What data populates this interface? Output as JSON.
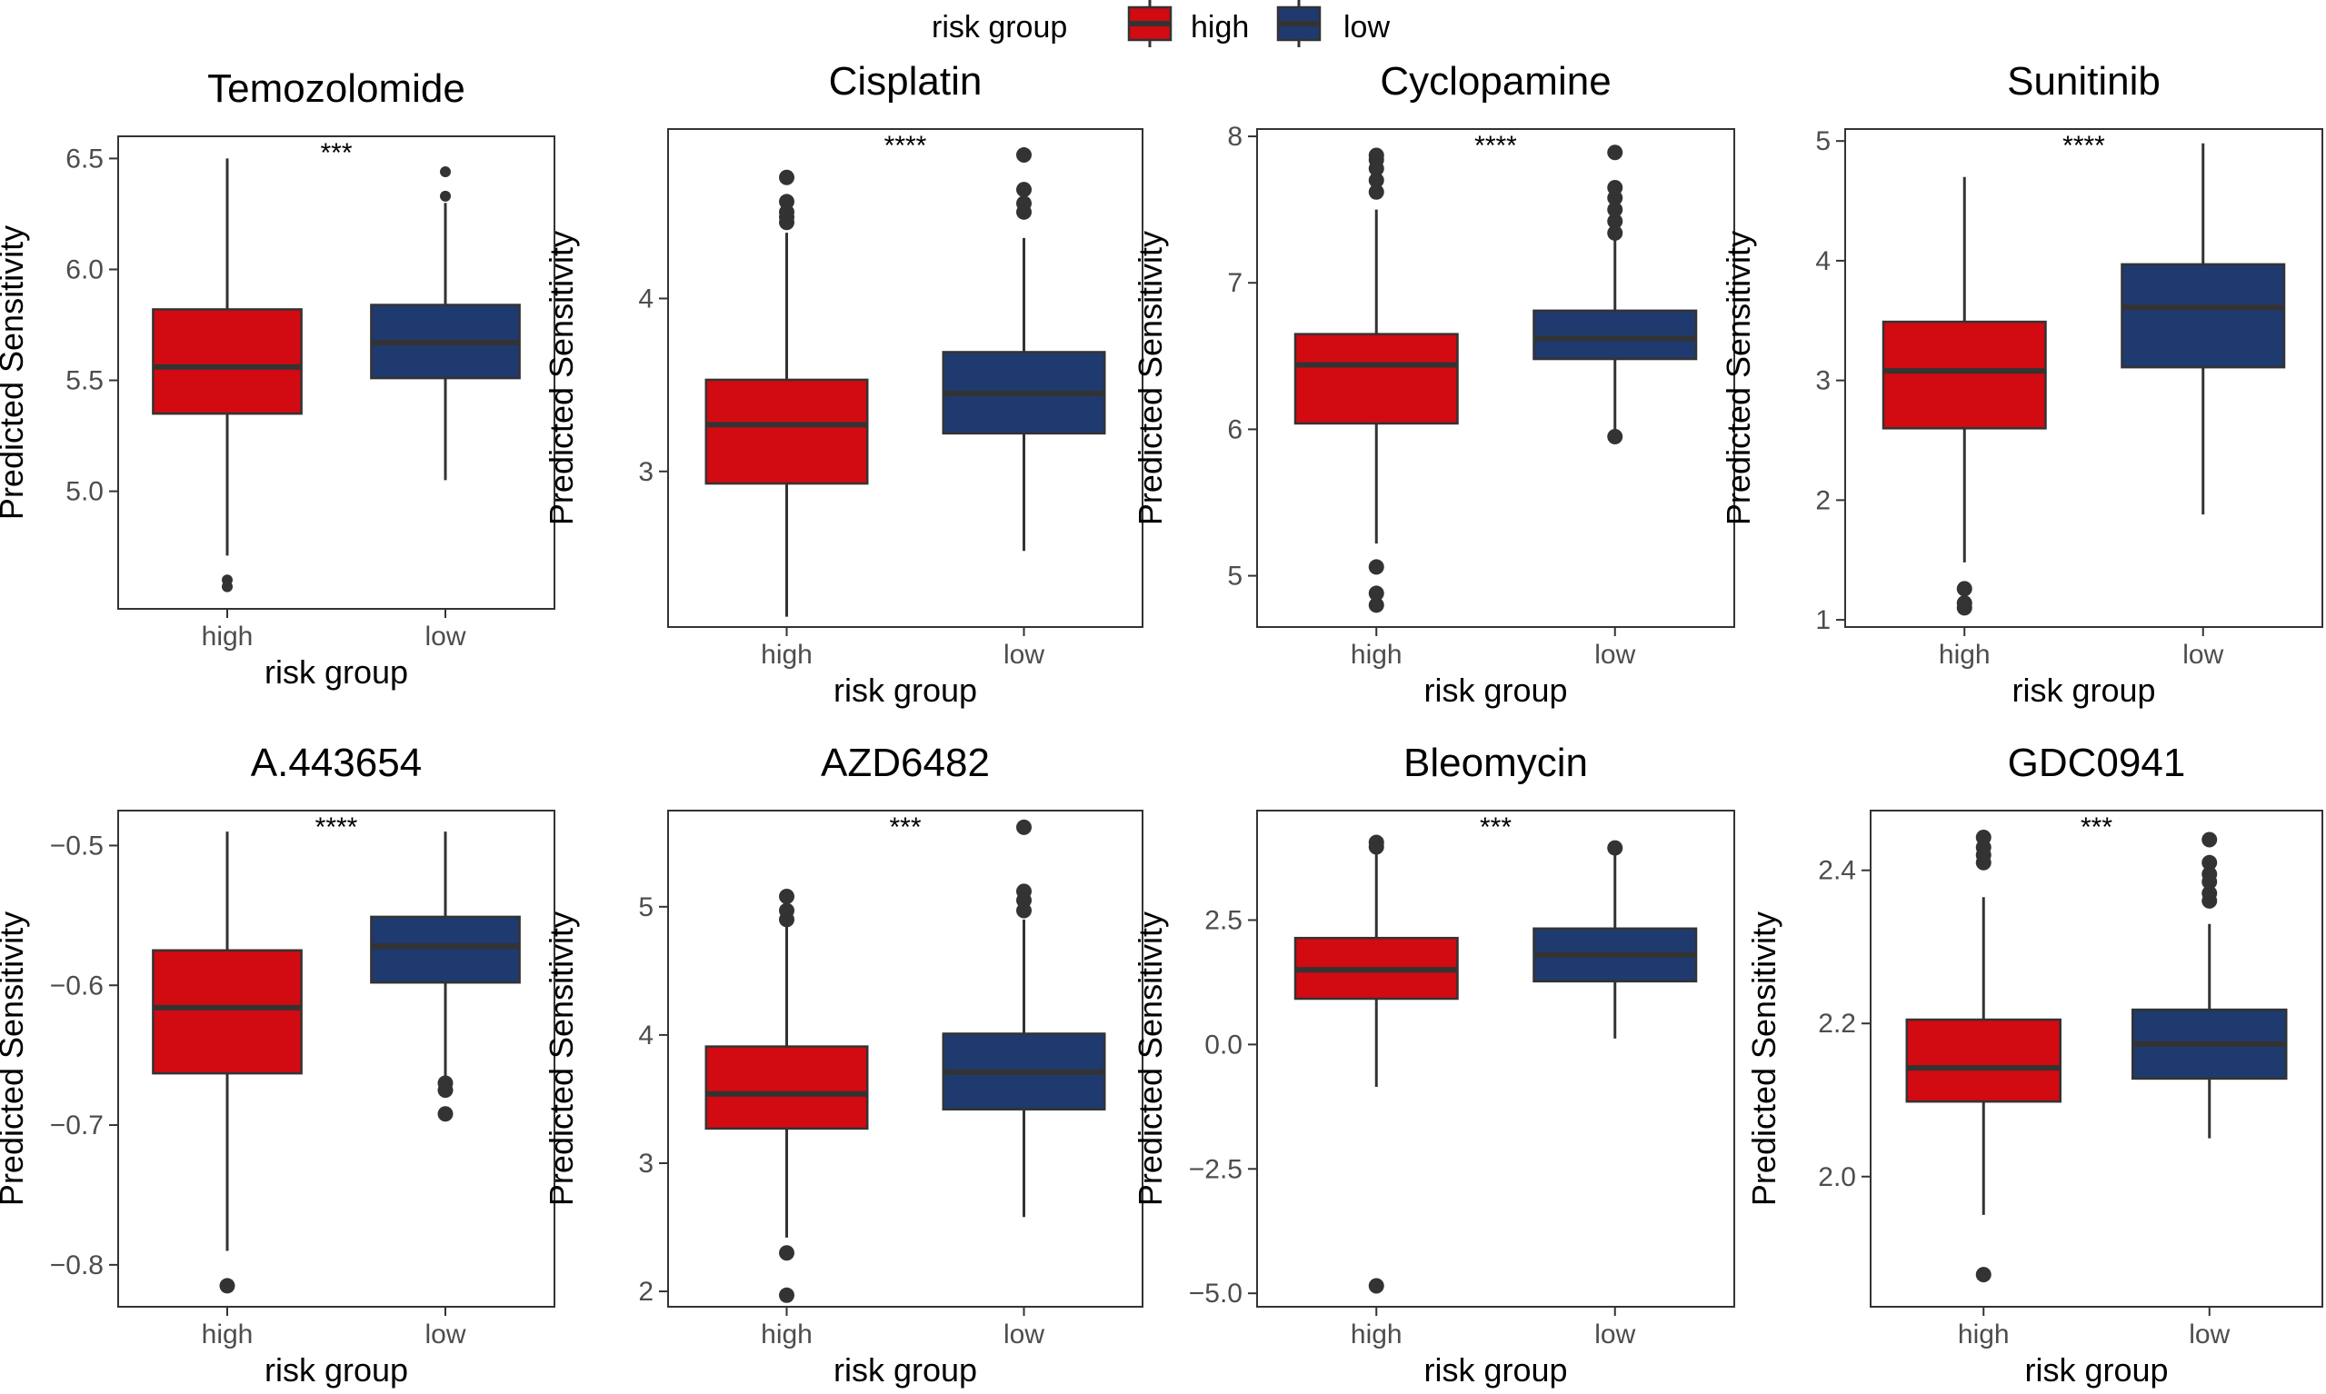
{
  "legend": {
    "title": "risk group",
    "entries": [
      {
        "label": "high",
        "color": "#D20A11"
      },
      {
        "label": "low",
        "color": "#1F3A6E"
      }
    ]
  },
  "chart_data": [
    {
      "type": "box",
      "title": "Temozolomide",
      "xlabel": "risk group",
      "ylabel": "Predicted Sensitivity",
      "categories": [
        "high",
        "low"
      ],
      "ylim": [
        4.47,
        6.6
      ],
      "yticks": [
        5.0,
        5.5,
        6.0,
        6.5
      ],
      "ytick_labels": [
        "5.0",
        "5.5",
        "6.0",
        "6.5"
      ],
      "significance": "***",
      "boxes": [
        {
          "group": "high",
          "whisker_low": 4.71,
          "q1": 5.35,
          "median": 5.56,
          "q3": 5.82,
          "whisker_high": 6.5,
          "outliers": [
            4.57,
            4.6
          ]
        },
        {
          "group": "low",
          "whisker_low": 5.05,
          "q1": 5.51,
          "median": 5.67,
          "q3": 5.84,
          "whisker_high": 6.3,
          "outliers": [
            6.33,
            6.44
          ]
        }
      ]
    },
    {
      "type": "box",
      "title": "Cisplatin",
      "xlabel": "risk group",
      "ylabel": "Predicted Sensitivity",
      "categories": [
        "high",
        "low"
      ],
      "ylim": [
        2.1,
        4.98
      ],
      "yticks": [
        3,
        4
      ],
      "ytick_labels": [
        "3",
        "4"
      ],
      "significance": "****",
      "boxes": [
        {
          "group": "high",
          "whisker_low": 2.16,
          "q1": 2.93,
          "median": 3.27,
          "q3": 3.53,
          "whisker_high": 4.38,
          "outliers": [
            4.44,
            4.47,
            4.5,
            4.56,
            4.7
          ]
        },
        {
          "group": "low",
          "whisker_low": 2.54,
          "q1": 3.22,
          "median": 3.45,
          "q3": 3.69,
          "whisker_high": 4.35,
          "outliers": [
            4.5,
            4.55,
            4.63,
            4.83
          ]
        }
      ]
    },
    {
      "type": "box",
      "title": "Cyclopamine",
      "xlabel": "risk group",
      "ylabel": "Predicted Sensitivity",
      "categories": [
        "high",
        "low"
      ],
      "ylim": [
        4.65,
        8.05
      ],
      "yticks": [
        5,
        6,
        7,
        8
      ],
      "ytick_labels": [
        "5",
        "6",
        "7",
        "8"
      ],
      "significance": "****",
      "boxes": [
        {
          "group": "high",
          "whisker_low": 5.22,
          "q1": 6.04,
          "median": 6.44,
          "q3": 6.65,
          "whisker_high": 7.5,
          "outliers": [
            4.8,
            4.88,
            5.06,
            7.62,
            7.7,
            7.78,
            7.84,
            7.87
          ]
        },
        {
          "group": "low",
          "whisker_low": 5.94,
          "q1": 6.48,
          "median": 6.62,
          "q3": 6.81,
          "whisker_high": 7.3,
          "outliers": [
            5.95,
            7.34,
            7.42,
            7.5,
            7.58,
            7.65,
            7.89
          ]
        }
      ]
    },
    {
      "type": "box",
      "title": "Sunitinib",
      "xlabel": "risk group",
      "ylabel": "Predicted Sensitivity",
      "categories": [
        "high",
        "low"
      ],
      "ylim": [
        0.94,
        5.1
      ],
      "yticks": [
        1,
        2,
        3,
        4,
        5
      ],
      "ytick_labels": [
        "1",
        "2",
        "3",
        "4",
        "5"
      ],
      "significance": "****",
      "boxes": [
        {
          "group": "high",
          "whisker_low": 1.48,
          "q1": 2.6,
          "median": 3.08,
          "q3": 3.49,
          "whisker_high": 4.7,
          "outliers": [
            1.1,
            1.14,
            1.26
          ]
        },
        {
          "group": "low",
          "whisker_low": 1.88,
          "q1": 3.11,
          "median": 3.61,
          "q3": 3.97,
          "whisker_high": 4.98,
          "outliers": []
        }
      ]
    },
    {
      "type": "box",
      "title": "A.443654",
      "xlabel": "risk group",
      "ylabel": "Predicted Sensitivity",
      "categories": [
        "high",
        "low"
      ],
      "ylim": [
        -0.83,
        -0.475
      ],
      "yticks": [
        -0.8,
        -0.7,
        -0.6,
        -0.5
      ],
      "ytick_labels": [
        "−0.8",
        "−0.7",
        "−0.6",
        "−0.5"
      ],
      "significance": "****",
      "boxes": [
        {
          "group": "high",
          "whisker_low": -0.79,
          "q1": -0.663,
          "median": -0.616,
          "q3": -0.575,
          "whisker_high": -0.49,
          "outliers": [
            -0.815
          ]
        },
        {
          "group": "low",
          "whisker_low": -0.665,
          "q1": -0.598,
          "median": -0.572,
          "q3": -0.551,
          "whisker_high": -0.49,
          "outliers": [
            -0.67,
            -0.675,
            -0.692
          ]
        }
      ]
    },
    {
      "type": "box",
      "title": "AZD6482",
      "xlabel": "risk group",
      "ylabel": "Predicted Sensitivity",
      "categories": [
        "high",
        "low"
      ],
      "ylim": [
        1.88,
        5.75
      ],
      "yticks": [
        2,
        3,
        4,
        5
      ],
      "ytick_labels": [
        "2",
        "3",
        "4",
        "5"
      ],
      "significance": "***",
      "boxes": [
        {
          "group": "high",
          "whisker_low": 2.42,
          "q1": 3.27,
          "median": 3.54,
          "q3": 3.91,
          "whisker_high": 4.88,
          "outliers": [
            1.97,
            2.3,
            4.9,
            4.97,
            5.08
          ]
        },
        {
          "group": "low",
          "whisker_low": 2.58,
          "q1": 3.42,
          "median": 3.71,
          "q3": 4.01,
          "whisker_high": 4.9,
          "outliers": [
            4.97,
            5.05,
            5.12,
            5.62
          ]
        }
      ]
    },
    {
      "type": "box",
      "title": "Bleomycin",
      "xlabel": "risk group",
      "ylabel": "Predicted Sensitivity",
      "categories": [
        "high",
        "low"
      ],
      "ylim": [
        -5.27,
        4.7
      ],
      "yticks": [
        -5.0,
        -2.5,
        0.0,
        2.5
      ],
      "ytick_labels": [
        "−5.0",
        "−2.5",
        "0.0",
        "2.5"
      ],
      "significance": "***",
      "boxes": [
        {
          "group": "high",
          "whisker_low": -0.85,
          "q1": 0.92,
          "median": 1.5,
          "q3": 2.14,
          "whisker_high": 3.9,
          "outliers": [
            -4.85,
            3.97,
            4.06
          ]
        },
        {
          "group": "low",
          "whisker_low": 0.12,
          "q1": 1.27,
          "median": 1.8,
          "q3": 2.33,
          "whisker_high": 3.88,
          "outliers": [
            3.95
          ]
        }
      ]
    },
    {
      "type": "box",
      "title": "GDC0941",
      "xlabel": "risk group",
      "ylabel": "Predicted Sensitivity",
      "categories": [
        "high",
        "low"
      ],
      "ylim": [
        1.83,
        2.478
      ],
      "yticks": [
        2.0,
        2.2,
        2.4
      ],
      "ytick_labels": [
        "2.0",
        "2.2",
        "2.4"
      ],
      "significance": "***",
      "boxes": [
        {
          "group": "high",
          "whisker_low": 1.95,
          "q1": 2.098,
          "median": 2.142,
          "q3": 2.205,
          "whisker_high": 2.365,
          "outliers": [
            1.872,
            2.41,
            2.42,
            2.43,
            2.443
          ]
        },
        {
          "group": "low",
          "whisker_low": 2.05,
          "q1": 2.128,
          "median": 2.173,
          "q3": 2.218,
          "whisker_high": 2.33,
          "outliers": [
            2.36,
            2.37,
            2.385,
            2.395,
            2.41,
            2.44
          ]
        }
      ]
    }
  ]
}
